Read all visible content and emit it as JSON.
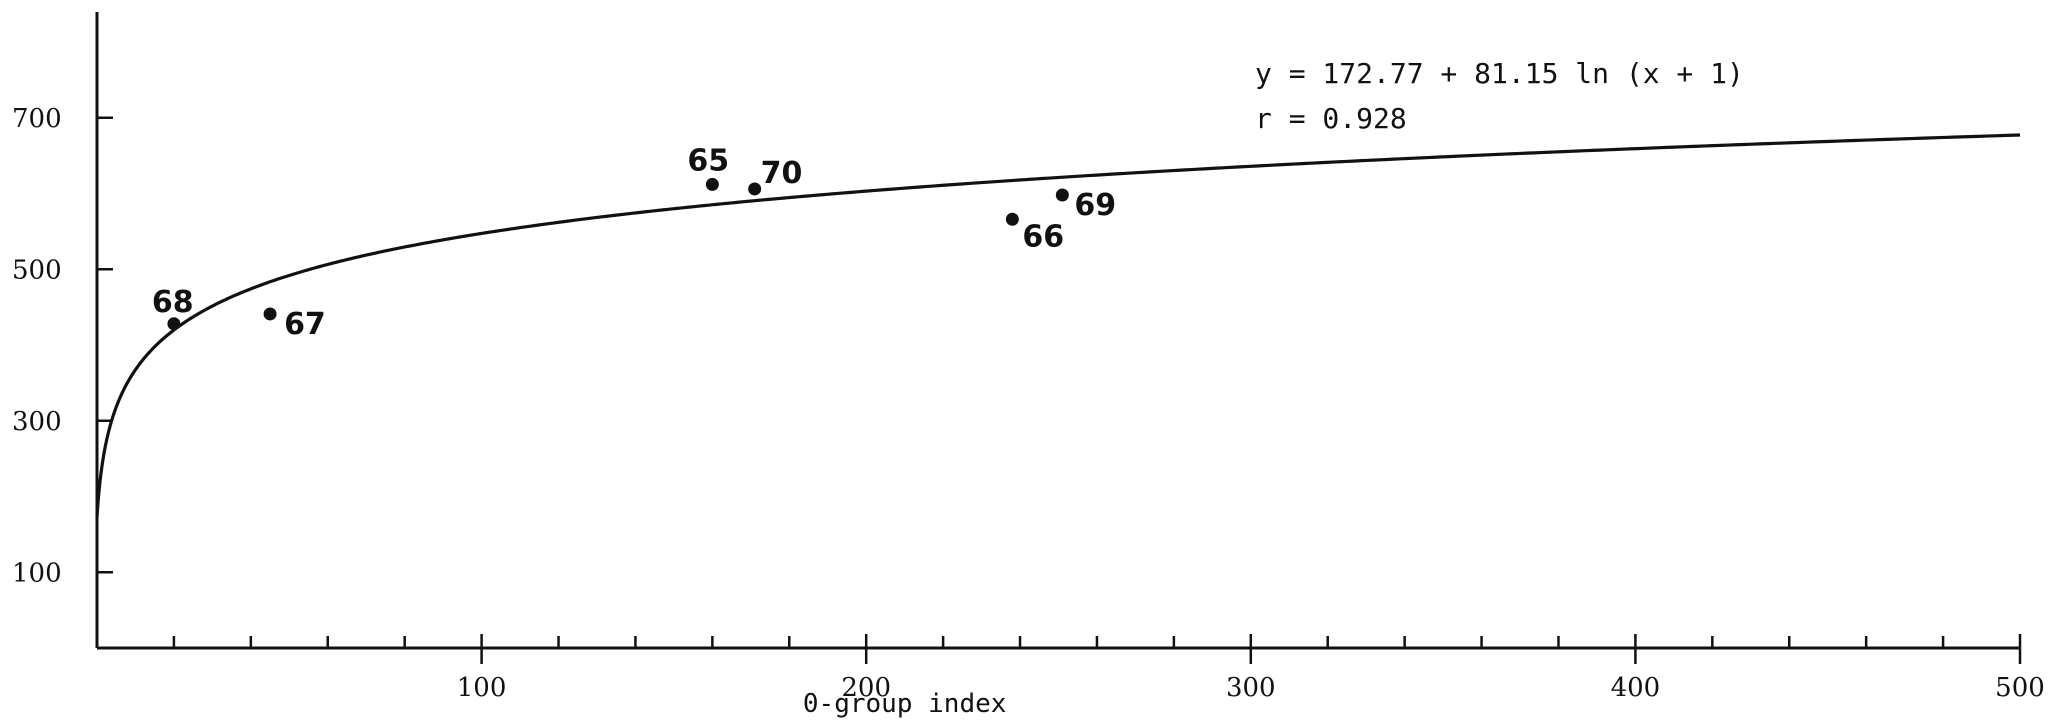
{
  "chart_data": {
    "type": "scatter",
    "title": "",
    "xlabel": "0-group index",
    "ylabel": "",
    "xlim": [
      0,
      500
    ],
    "ylim": [
      0,
      840
    ],
    "grid": false,
    "x_ticks": [
      100,
      200,
      300,
      400,
      500
    ],
    "x_tick_labels": [
      "100",
      "200",
      "300",
      "400",
      "500"
    ],
    "x_minor_ticks": [
      20,
      40,
      60,
      80,
      120,
      140,
      160,
      180,
      220,
      240,
      260,
      280,
      320,
      340,
      360,
      380,
      420,
      440,
      460,
      480
    ],
    "y_ticks": [
      100,
      300,
      500,
      700
    ],
    "y_tick_labels": [
      "100",
      "300",
      "500",
      "700"
    ],
    "points": [
      {
        "label": "68",
        "x": 20,
        "y": 428
      },
      {
        "label": "67",
        "x": 45,
        "y": 441
      },
      {
        "label": "65",
        "x": 160,
        "y": 612
      },
      {
        "label": "70",
        "x": 171,
        "y": 606
      },
      {
        "label": "66",
        "x": 238,
        "y": 566
      },
      {
        "label": "69",
        "x": 251,
        "y": 598
      }
    ],
    "fit": {
      "a": 172.77,
      "b": 81.15,
      "equation_text": "y = 172.77 + 81.15 ln (x + 1)",
      "r_text": "r = 0.928"
    },
    "colors": {
      "ink": "#111111",
      "background": "#ffffff"
    }
  }
}
